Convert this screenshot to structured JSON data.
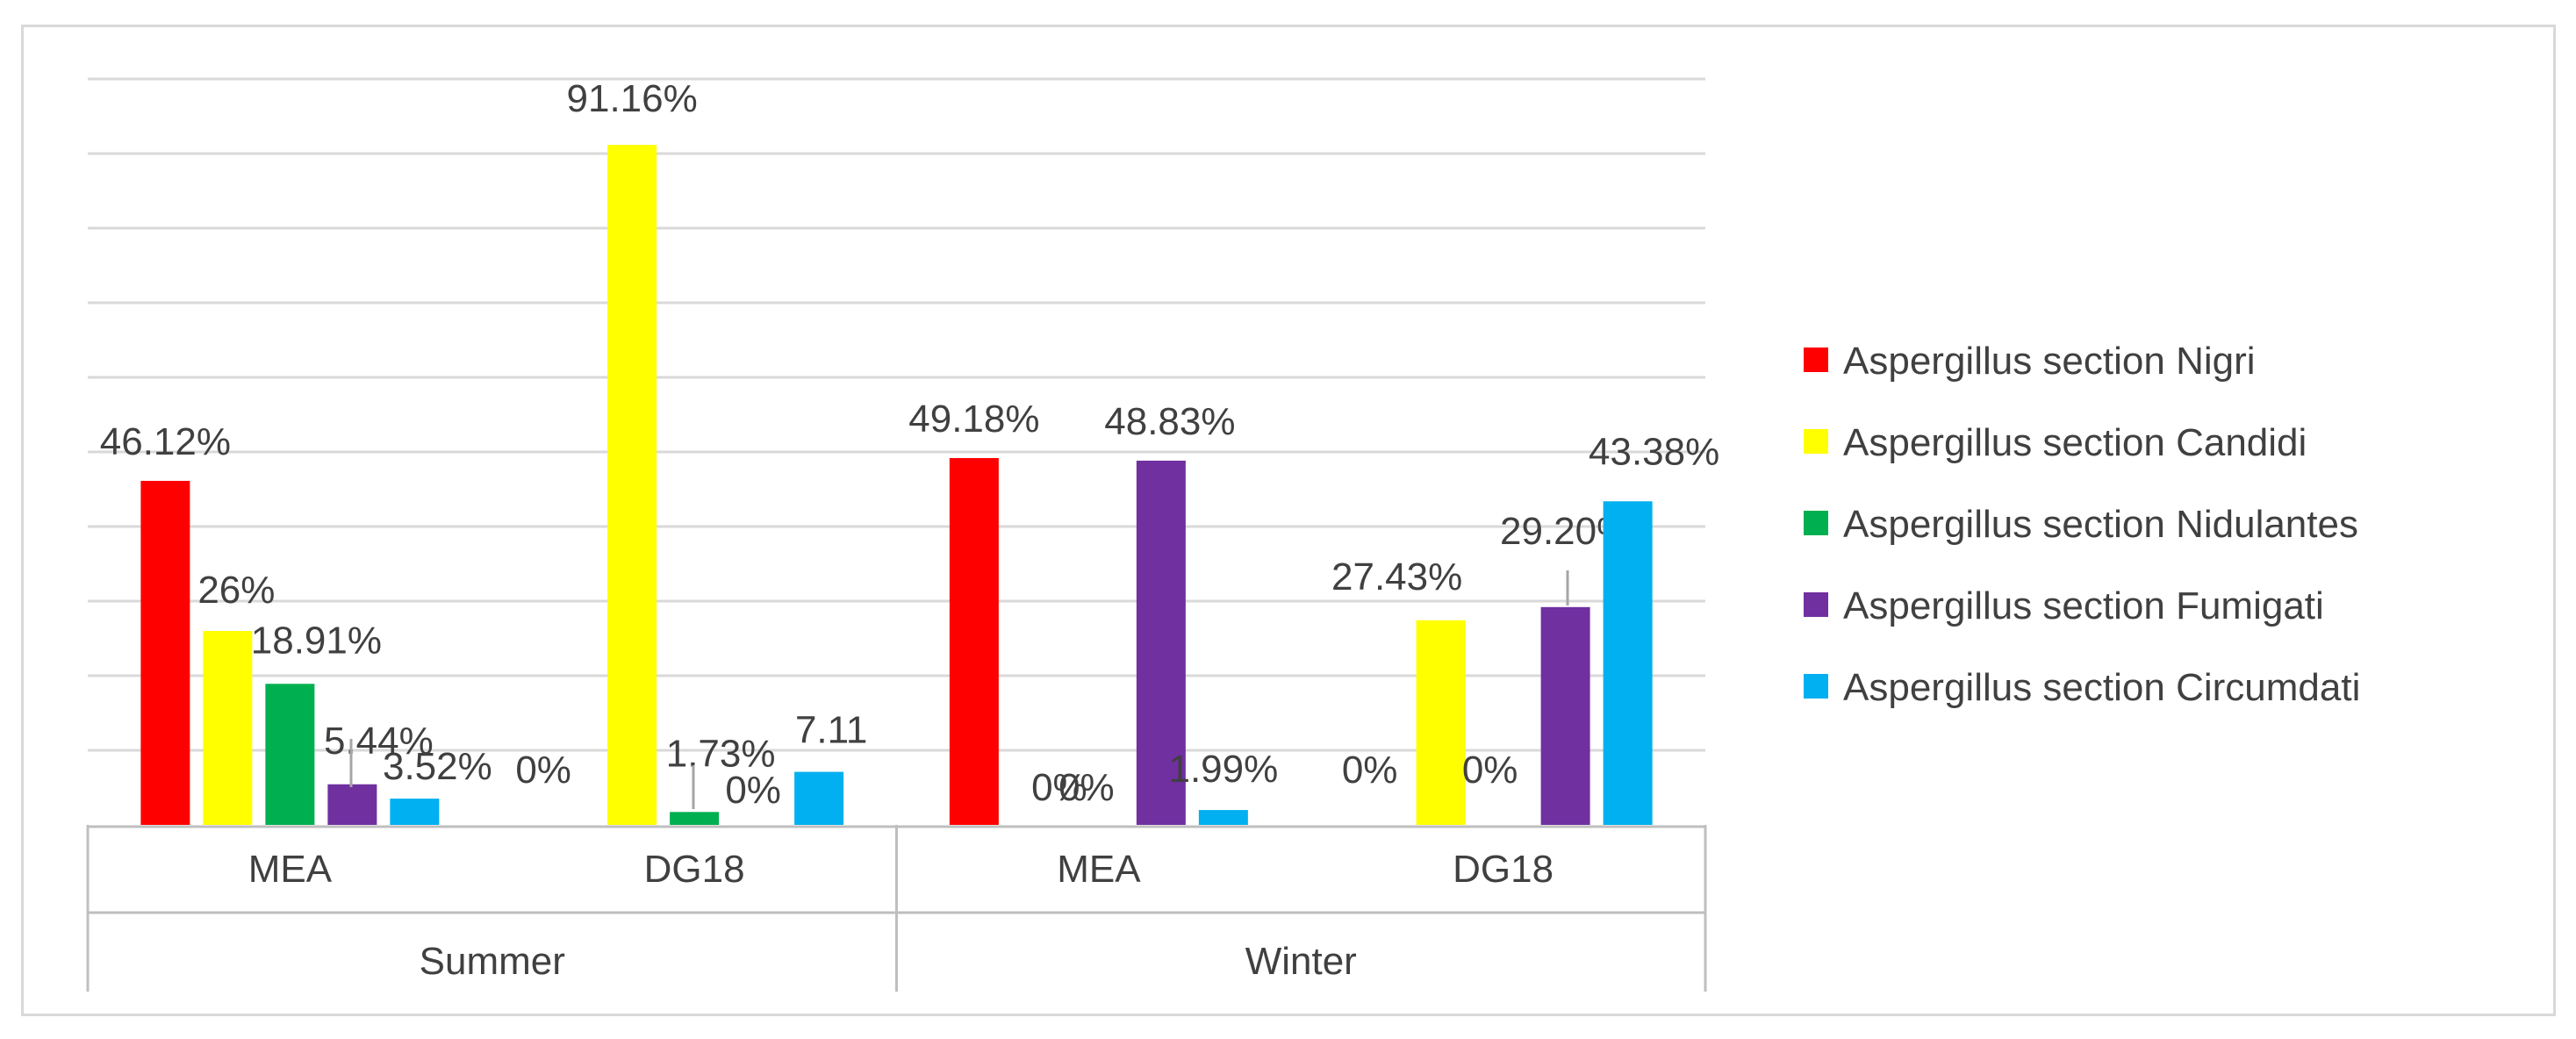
{
  "chart_data": {
    "type": "bar",
    "title": "",
    "xlabel": "",
    "ylabel": "",
    "ylim": [
      0,
      100
    ],
    "grid": true,
    "legend_position": "right",
    "groups": [
      {
        "label": "Summer",
        "categories": [
          "MEA",
          "DG18"
        ]
      },
      {
        "label": "Winter",
        "categories": [
          "MEA",
          "DG18"
        ]
      }
    ],
    "series": [
      {
        "name": "Aspergillus section Nigri",
        "color": "#ff0000",
        "values": [
          46.12,
          0,
          49.18,
          0
        ],
        "labels": [
          "46.12%",
          "0%",
          "49.18%",
          "0%"
        ]
      },
      {
        "name": "Aspergillus section Candidi",
        "color": "#ffff00",
        "values": [
          26,
          91.16,
          0,
          27.43
        ],
        "labels": [
          "26%",
          "91.16%",
          "0%",
          "27.43%"
        ]
      },
      {
        "name": "Aspergillus section Nidulantes",
        "color": "#00b050",
        "values": [
          18.91,
          1.73,
          0,
          0
        ],
        "labels": [
          "18.91%",
          "1.73%",
          "0%",
          "0%"
        ]
      },
      {
        "name": "Aspergillus section Fumigati",
        "color": "#7030a0",
        "values": [
          5.44,
          0,
          48.83,
          29.2
        ],
        "labels": [
          "5.44%",
          "0%",
          "48.83%",
          "29.20%"
        ]
      },
      {
        "name": "Aspergillus section Circumdati",
        "color": "#00b0f0",
        "values": [
          3.52,
          7.11,
          1.99,
          43.38
        ],
        "labels": [
          "3.52%",
          "7.11",
          "1.99%",
          "43.38%"
        ]
      }
    ]
  }
}
